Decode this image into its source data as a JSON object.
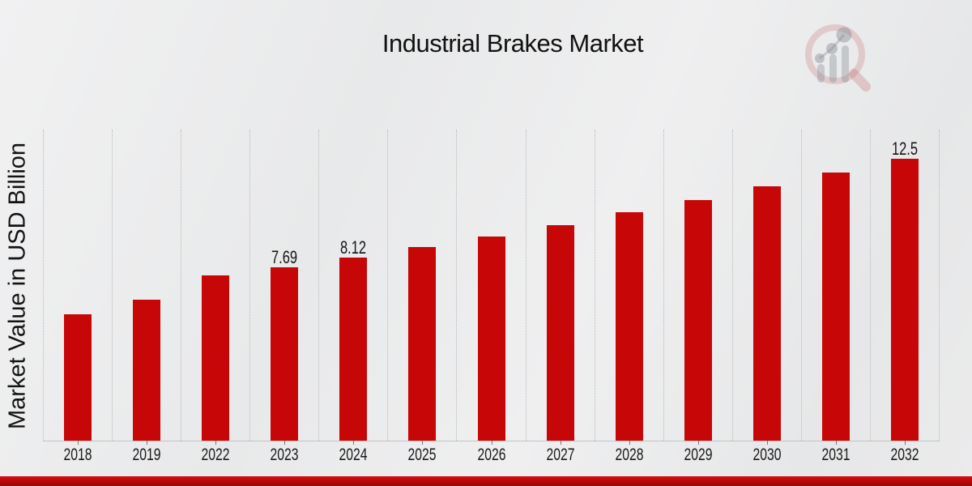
{
  "page": {
    "title": "Industrial Brakes Market"
  },
  "watermark": {
    "icon": "magnifier-bar-chart-logo"
  },
  "colors": {
    "bar": "#c70707",
    "footer_band": "#b90707",
    "background": "#ebecec"
  },
  "chart_data": {
    "type": "bar",
    "title": "Industrial Brakes Market",
    "xlabel": "",
    "ylabel": "Market Value in USD Billion",
    "categories": [
      "2018",
      "2019",
      "2022",
      "2023",
      "2024",
      "2025",
      "2026",
      "2027",
      "2028",
      "2029",
      "2030",
      "2031",
      "2032"
    ],
    "values": [
      5.59,
      6.24,
      7.32,
      7.69,
      8.12,
      8.58,
      9.05,
      9.57,
      10.13,
      10.67,
      11.27,
      11.89,
      12.5
    ],
    "data_labels": [
      "",
      "",
      "",
      "7.69",
      "8.12",
      "",
      "",
      "",
      "",
      "",
      "",
      "",
      "12.5"
    ],
    "ylim": [
      0,
      13.8
    ],
    "grid": "vertical-dotted",
    "legend": "none",
    "bar_color": "#c70707"
  }
}
